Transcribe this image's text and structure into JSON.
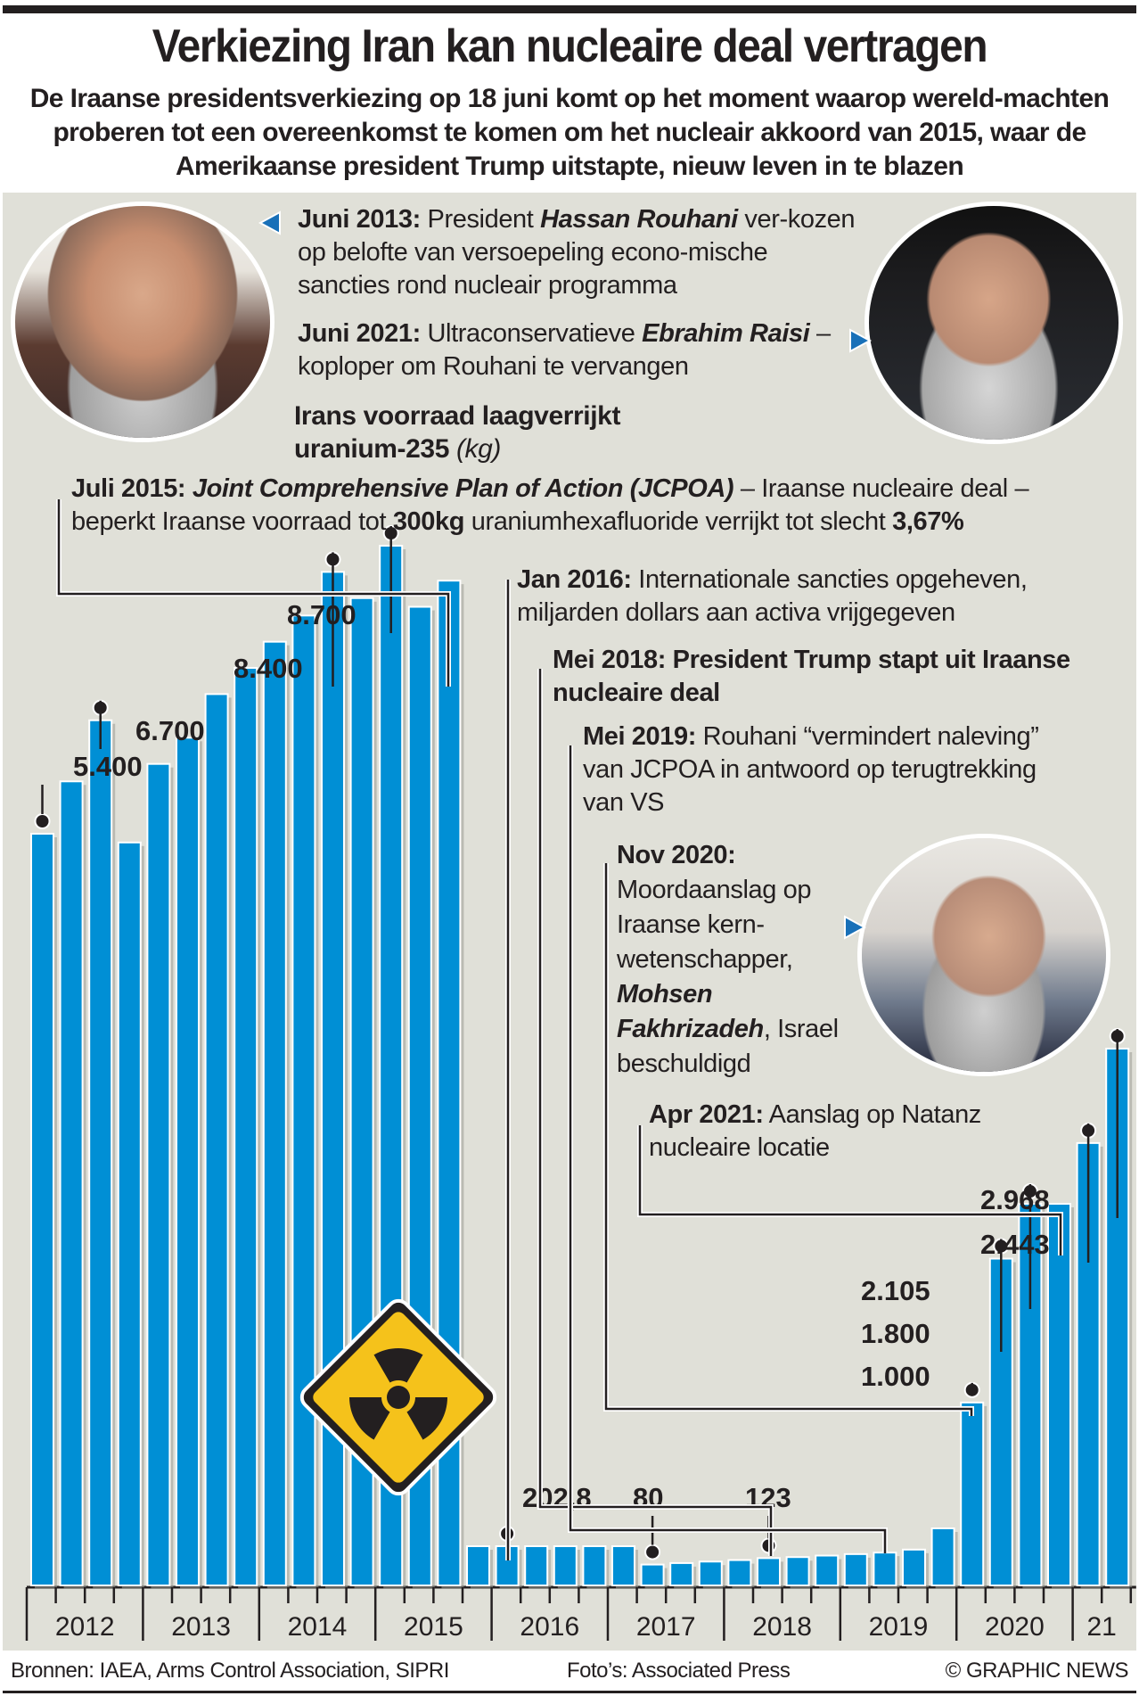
{
  "header": {
    "title": "Verkiezing Iran kan nucleaire deal vertragen",
    "subtitle": "De Iraanse presidentsverkiezing op 18 juni komt op het moment waarop wereld-machten proberen tot een overeenkomst te komen om het nucleair akkoord van 2015, waar de Amerikaanse president Trump uitstapte, nieuw leven in te blazen"
  },
  "annotations": {
    "juni2013": {
      "date": "Juni 2013:",
      "pre": "President",
      "name": "Hassan Rouhani",
      "post": "ver-kozen op belofte van versoepeling econo-mische sancties rond nucleair programma"
    },
    "juni2021": {
      "date": "Juni 2021:",
      "pre": "Ultraconservatieve",
      "name": "Ebrahim Raisi",
      "post": "– koploper om Rouhani te vervangen"
    },
    "chart_heading": {
      "main": "Irans voorraad laagverrijkt uranium-235",
      "unit": "(kg)"
    },
    "juli2015": {
      "date": "Juli 2015:",
      "name": "Joint Comprehensive Plan of Action (JCPOA)",
      "post1": "– Iraanse nucleaire deal – beperkt Iraanse voorraad tot",
      "bold1": "300kg",
      "post2": "uraniumhexafluoride verrijkt tot slecht",
      "bold2": "3,67%"
    },
    "jan2016": {
      "date": "Jan 2016:",
      "text": "Internationale sancties opgeheven, miljarden dollars aan activa vrijgegeven"
    },
    "mei2018": {
      "date": "Mei 2018:",
      "text": "President Trump stapt uit Iraanse nucleaire deal"
    },
    "mei2019": {
      "date": "Mei 2019:",
      "text": "Rouhani “vermindert naleving” van JCPOA in antwoord op terugtrekking van VS"
    },
    "nov2020": {
      "date": "Nov 2020:",
      "pre": "Moordaanslag op Iraanse kern-wetenschapper,",
      "name": "Mohsen Fakhrizadeh",
      "post": ", Israel beschuldigd"
    },
    "apr2021": {
      "date": "Apr 2021:",
      "text": "Aanslag op Natanz nucleaire locatie"
    }
  },
  "photos": {
    "rouhani": "Hassan Rouhani photo",
    "raisi": "Ebrahim Raisi photo",
    "fakhrizadeh": "Mohsen Fakhrizadeh photo"
  },
  "footer": {
    "sources": "Bronnen: IAEA, Arms Control Association, SIPRI",
    "photos": "Foto’s: Associated Press",
    "copyright": "© GRAPHIC NEWS"
  },
  "colors": {
    "bar": "#008fd5",
    "panel": "#e0e0d8",
    "ink": "#231f20",
    "hazard_yellow": "#f5c21b",
    "hazard_orange": "#f29a1e"
  },
  "chart_data": {
    "type": "bar",
    "title": "Irans voorraad laagverrijkt uranium-235",
    "ylabel": "kg",
    "xlabel": "",
    "x_ticks": [
      "2012",
      "2013",
      "2014",
      "2015",
      "2016",
      "2017",
      "2018",
      "2019",
      "2020",
      "21"
    ],
    "categories": [
      "2012 Q1",
      "2012 Q2",
      "2012 Q3",
      "2012 Q4",
      "2013 Q1",
      "2013 Q2",
      "2013 Q3",
      "2013 Q4",
      "2014 Q1",
      "2014 Q2",
      "2014 Q3",
      "2014 Q4",
      "2015 Q1",
      "2015 Q2",
      "2015 Q3",
      "2015 Q4",
      "2016 Q1",
      "2016 Q2",
      "2016 Q3",
      "2016 Q4",
      "2017 Q1",
      "2017 Q2",
      "2017 Q3",
      "2017 Q4",
      "2018 Q1",
      "2018 Q2",
      "2018 Q3",
      "2018 Q4",
      "2019 Q1",
      "2019 Q2",
      "2019 Q3",
      "2019 Q4",
      "2020 Q1",
      "2020 Q2",
      "2020 Q3",
      "2020 Q4",
      "2021 Q1",
      "2021 Q2"
    ],
    "values": [
      5400,
      6000,
      6700,
      5300,
      6200,
      6500,
      7000,
      7300,
      7600,
      7900,
      8400,
      8100,
      8700,
      8000,
      8300,
      202.8,
      202.8,
      202.8,
      202.8,
      202.8,
      202.8,
      80,
      90,
      100,
      110,
      123,
      130,
      140,
      150,
      160,
      180,
      300,
      1000,
      1800,
      2105,
      2105,
      2443,
      2968
    ],
    "labeled_values": [
      {
        "label": "5.400",
        "index": 0
      },
      {
        "label": "6.700",
        "index": 2
      },
      {
        "label": "8.400",
        "index": 10
      },
      {
        "label": "8.700",
        "index": 12
      },
      {
        "label": "202,8",
        "index": 16
      },
      {
        "label": "80",
        "index": 21
      },
      {
        "label": "123",
        "index": 25
      },
      {
        "label": "1.000",
        "index": 32
      },
      {
        "label": "1.800",
        "index": 33
      },
      {
        "label": "2.105",
        "index": 34
      },
      {
        "label": "2.443",
        "index": 36
      },
      {
        "label": "2.968",
        "index": 37
      }
    ],
    "ylim": [
      0,
      9000
    ],
    "grid": false,
    "legend": "none"
  }
}
